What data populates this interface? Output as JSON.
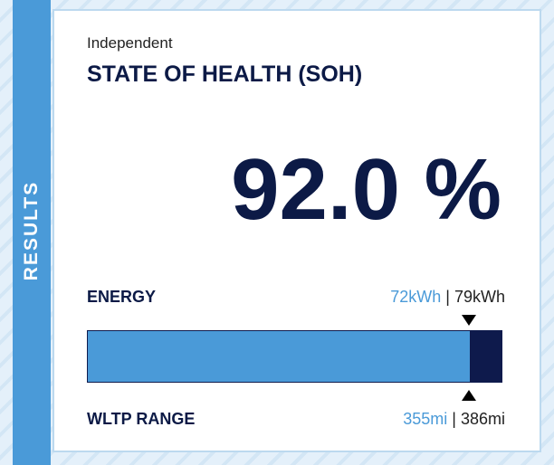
{
  "side_label": "RESULTS",
  "header": {
    "subtitle": "Independent",
    "title": "STATE OF HEALTH (SOH)"
  },
  "soh": {
    "value": 92.0,
    "label": "92.0 %"
  },
  "energy": {
    "label": "ENERGY",
    "current": "72kWh",
    "separator": "|",
    "total": "79kWh"
  },
  "range": {
    "label": "WLTP RANGE",
    "current": "355mi",
    "separator": "|",
    "total": "386mi"
  }
}
